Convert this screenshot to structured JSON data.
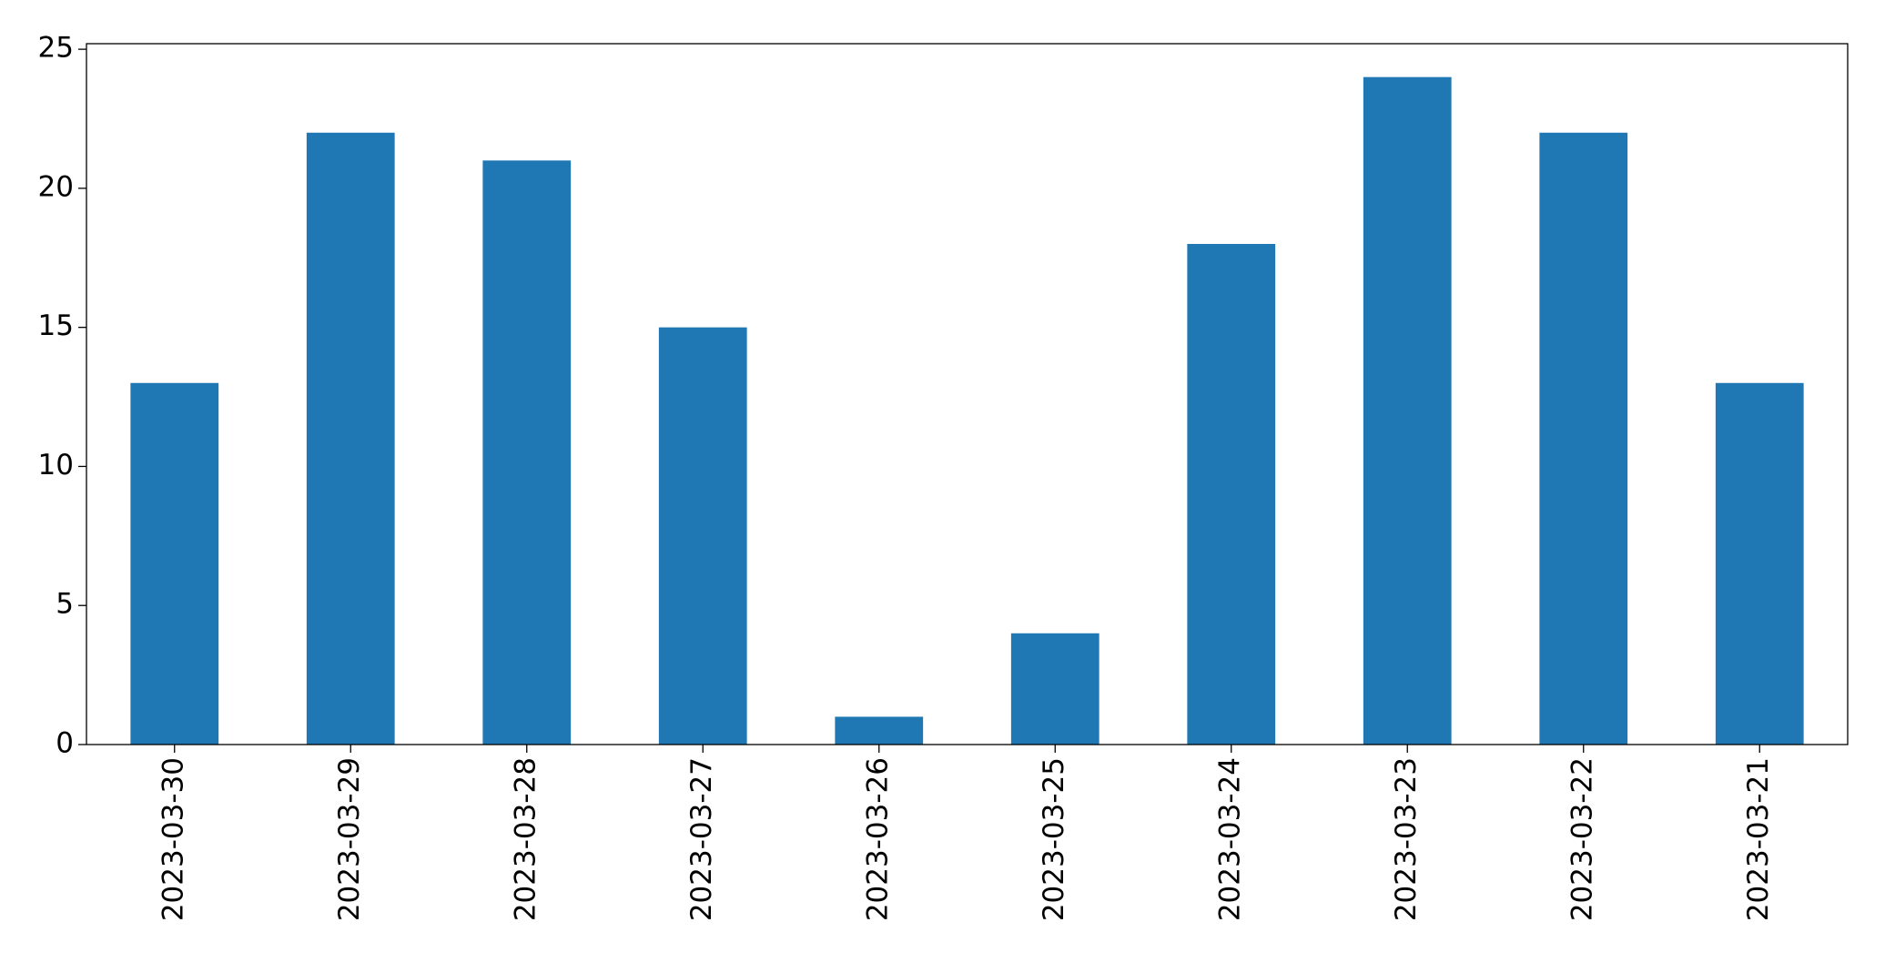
{
  "chart_data": {
    "type": "bar",
    "categories": [
      "2023-03-30",
      "2023-03-29",
      "2023-03-28",
      "2023-03-27",
      "2023-03-26",
      "2023-03-25",
      "2023-03-24",
      "2023-03-23",
      "2023-03-22",
      "2023-03-21"
    ],
    "values": [
      13,
      22,
      21,
      15,
      1,
      4,
      18,
      24,
      22,
      13
    ],
    "color": "#1f77b4",
    "ylim": [
      0,
      25.2
    ],
    "yticks": [
      0,
      5,
      10,
      15,
      20,
      25
    ],
    "grid": false
  }
}
